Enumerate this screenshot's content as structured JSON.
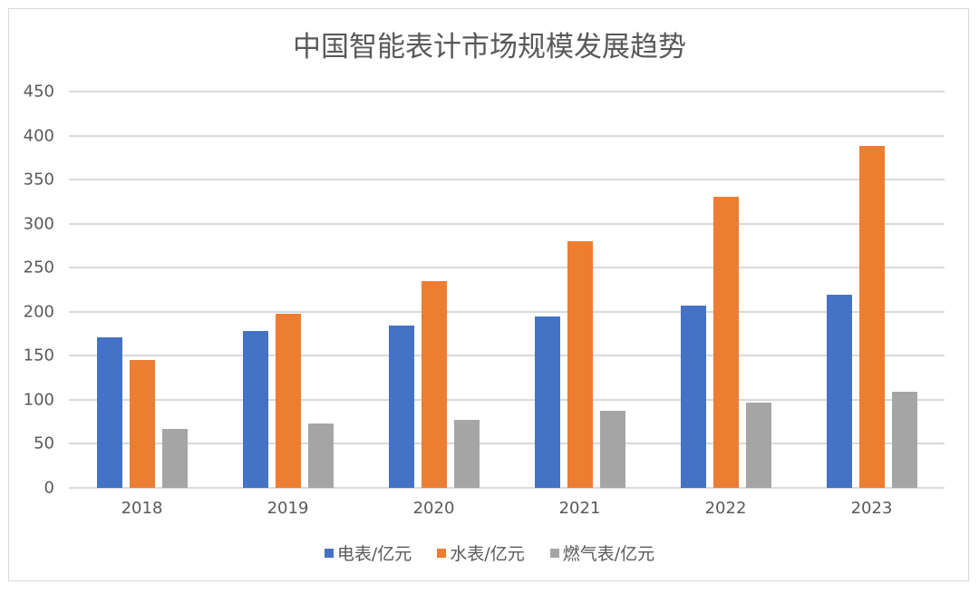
{
  "chart_data": {
    "type": "bar",
    "title": "中国智能表计市场规模发展趋势",
    "xlabel": "",
    "ylabel": "",
    "categories": [
      "2018",
      "2019",
      "2020",
      "2021",
      "2022",
      "2023"
    ],
    "series": [
      {
        "name": "电表/亿元",
        "color": "#4472c4",
        "values": [
          171,
          178,
          184,
          195,
          207,
          219
        ]
      },
      {
        "name": "水表/亿元",
        "color": "#ed7d31",
        "values": [
          145,
          198,
          235,
          280,
          331,
          388
        ]
      },
      {
        "name": "燃气表/亿元",
        "color": "#a5a5a5",
        "values": [
          67,
          73,
          77,
          88,
          97,
          109
        ]
      }
    ],
    "ylim": [
      0,
      450
    ],
    "yticks": [
      "0",
      "50",
      "100",
      "150",
      "200",
      "250",
      "300",
      "350",
      "400",
      "450"
    ],
    "grid": true,
    "legend_position": "bottom"
  }
}
